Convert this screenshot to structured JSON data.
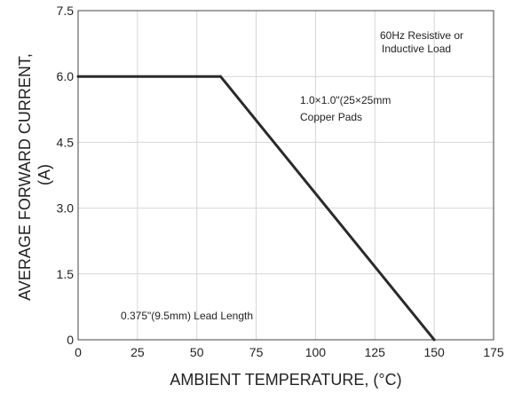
{
  "chart_data": {
    "type": "line",
    "title": "",
    "xlabel": "AMBIENT TEMPERATURE, (°C)",
    "ylabel_lines": [
      "AVERAGE FORWARD CURRENT,",
      "(A)"
    ],
    "xlim": [
      0,
      175
    ],
    "ylim": [
      0,
      7.5
    ],
    "x_ticks": [
      "0",
      "25",
      "50",
      "75",
      "100",
      "125",
      "150",
      "175"
    ],
    "y_ticks": [
      "0",
      "1.5",
      "3.0",
      "4.5",
      "6.0",
      "7.5"
    ],
    "grid": true,
    "series": [
      {
        "x": [
          0,
          60,
          150
        ],
        "y": [
          6.0,
          6.0,
          0
        ]
      }
    ],
    "annotations": [
      {
        "lines": [
          "60Hz Resistive or",
          "Inductive Load"
        ]
      },
      {
        "lines": [
          "1.0×1.0\"(25×25mm",
          "Copper Pads"
        ]
      },
      {
        "lines": [
          "0.375\"(9.5mm) Lead Length"
        ]
      }
    ]
  }
}
